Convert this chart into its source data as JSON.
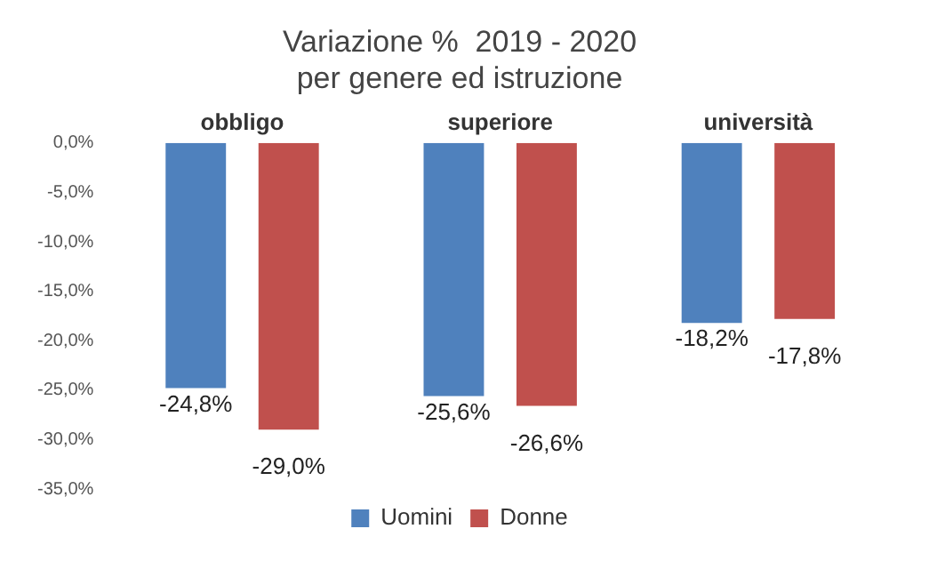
{
  "chart_data": {
    "type": "bar",
    "title": "Variazione %  2019 - 2020",
    "subtitle": "per genere ed istruzione",
    "categories": [
      "obbligo",
      "superiore",
      "università"
    ],
    "series": [
      {
        "name": "Uomini",
        "color": "#4f81bd",
        "values": [
          -24.8,
          -25.6,
          -18.2
        ],
        "value_labels": [
          "-24,8%",
          "-25,6%",
          "-18,2%"
        ]
      },
      {
        "name": "Donne",
        "color": "#c0504d",
        "values": [
          -29.0,
          -26.6,
          -17.8
        ],
        "value_labels": [
          "-29,0%",
          "-26,6%",
          "-17,8%"
        ]
      }
    ],
    "ylim": [
      -35,
      0
    ],
    "yticks": [
      {
        "value": 0,
        "label": "0,0%"
      },
      {
        "value": -5,
        "label": "-5,0%"
      },
      {
        "value": -10,
        "label": "-10,0%"
      },
      {
        "value": -15,
        "label": "-15,0%"
      },
      {
        "value": -20,
        "label": "-20,0%"
      },
      {
        "value": -25,
        "label": "-25,0%"
      },
      {
        "value": -30,
        "label": "-30,0%"
      },
      {
        "value": -35,
        "label": "-35,0%"
      }
    ],
    "grid": false,
    "legend": "bottom"
  }
}
